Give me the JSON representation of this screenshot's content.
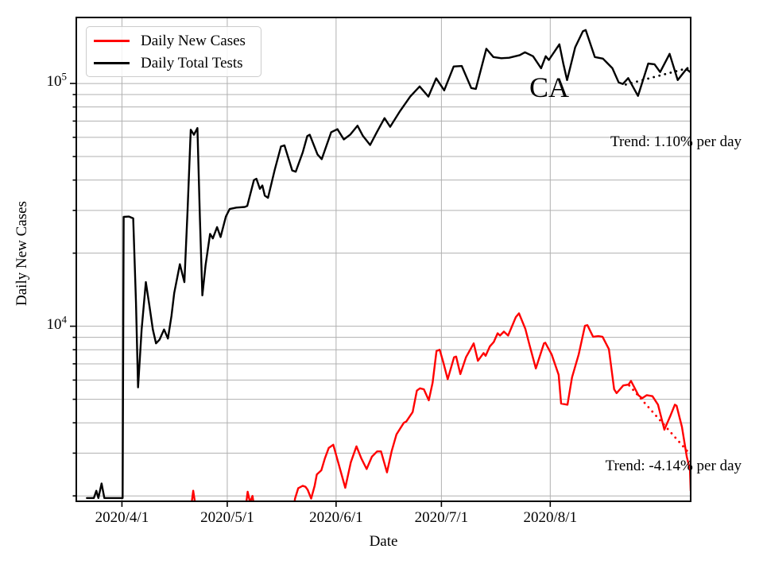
{
  "figure": {
    "ylabel": "Daily New Cases",
    "xlabel": "Date",
    "annotation": "CA",
    "trend_top": "Trend: 1.10% per day",
    "trend_bottom": "Trend: -4.14% per day"
  },
  "legend": {
    "position": "upper left",
    "items": [
      {
        "label": "Daily New Cases",
        "color": "#ff0000"
      },
      {
        "label": "Daily Total Tests",
        "color": "#000000"
      }
    ]
  },
  "chart_data": {
    "type": "line",
    "title": "",
    "xlabel": "Date",
    "ylabel": "Daily New Cases",
    "y_scale": "log",
    "ylim": [
      1900,
      187000
    ],
    "grid": true,
    "grid_color": "#b0b0b0",
    "x_unit": "days since 2020-03-19",
    "xlim_days": [
      0,
      175
    ],
    "x_ticks": [
      {
        "day": 13,
        "label": "2020/4/1"
      },
      {
        "day": 43,
        "label": "2020/5/1"
      },
      {
        "day": 74,
        "label": "2020/6/1"
      },
      {
        "day": 104,
        "label": "2020/7/1"
      },
      {
        "day": 135,
        "label": "2020/8/1"
      }
    ],
    "y_ticks": [
      {
        "value": 100000,
        "base": "10",
        "exp": "5"
      },
      {
        "value": 10000,
        "base": "10",
        "exp": "4"
      }
    ],
    "y_minor_gridlines": [
      2000,
      3000,
      4000,
      5000,
      6000,
      7000,
      8000,
      9000,
      20000,
      30000,
      40000,
      50000,
      60000,
      70000,
      80000,
      90000
    ],
    "series": [
      {
        "name": "Daily Total Tests",
        "color": "#000000",
        "points": [
          [
            3,
            1960
          ],
          [
            5,
            1960
          ],
          [
            5.7,
            2100
          ],
          [
            6.3,
            1960
          ],
          [
            7.2,
            2250
          ],
          [
            8,
            1960
          ],
          [
            13.2,
            1960
          ],
          [
            13.5,
            28200
          ],
          [
            15,
            28300
          ],
          [
            16.2,
            27800
          ],
          [
            17,
            12500
          ],
          [
            17.6,
            5600
          ],
          [
            18.6,
            9700
          ],
          [
            19.8,
            15200
          ],
          [
            20.8,
            12200
          ],
          [
            21.8,
            9700
          ],
          [
            22.7,
            8500
          ],
          [
            23.7,
            8800
          ],
          [
            25,
            9700
          ],
          [
            26.1,
            8900
          ],
          [
            27.1,
            11000
          ],
          [
            27.9,
            13700
          ],
          [
            29.5,
            18000
          ],
          [
            30.8,
            15200
          ],
          [
            31.7,
            30000
          ],
          [
            32.6,
            64500
          ],
          [
            33.5,
            61500
          ],
          [
            34.5,
            65500
          ],
          [
            35.2,
            28000
          ],
          [
            35.9,
            13400
          ],
          [
            36.8,
            17800
          ],
          [
            38.1,
            24000
          ],
          [
            38.9,
            23000
          ],
          [
            40.1,
            25600
          ],
          [
            41.1,
            23300
          ],
          [
            42.6,
            28300
          ],
          [
            43.7,
            30400
          ],
          [
            45.6,
            30800
          ],
          [
            48,
            31000
          ],
          [
            48.7,
            31300
          ],
          [
            50.6,
            40000
          ],
          [
            51.3,
            40500
          ],
          [
            52.3,
            36800
          ],
          [
            53,
            38000
          ],
          [
            53.7,
            34500
          ],
          [
            54.6,
            33800
          ],
          [
            56.5,
            44000
          ],
          [
            58.3,
            55000
          ],
          [
            59.3,
            55600
          ],
          [
            61.5,
            43800
          ],
          [
            62.5,
            43300
          ],
          [
            64.5,
            52000
          ],
          [
            65.8,
            60700
          ],
          [
            66.5,
            61500
          ],
          [
            68.7,
            51000
          ],
          [
            69.9,
            48800
          ],
          [
            72.6,
            63000
          ],
          [
            74.4,
            64800
          ],
          [
            76.2,
            58800
          ],
          [
            78,
            61500
          ],
          [
            80.1,
            67000
          ],
          [
            81.6,
            61000
          ],
          [
            83.7,
            55800
          ],
          [
            85.6,
            63000
          ],
          [
            87.8,
            72000
          ],
          [
            89.4,
            66300
          ],
          [
            92.1,
            76500
          ],
          [
            95.1,
            88300
          ],
          [
            97.8,
            97200
          ],
          [
            100.3,
            88300
          ],
          [
            102.5,
            105000
          ],
          [
            104.8,
            93700
          ],
          [
            107.5,
            117500
          ],
          [
            109.8,
            118000
          ],
          [
            112.5,
            95800
          ],
          [
            113.8,
            95000
          ],
          [
            116.8,
            139000
          ],
          [
            118.8,
            128500
          ],
          [
            121.1,
            127000
          ],
          [
            123.3,
            127600
          ],
          [
            126.3,
            130800
          ],
          [
            127.8,
            134400
          ],
          [
            130.1,
            129500
          ],
          [
            132.4,
            115500
          ],
          [
            133.7,
            129500
          ],
          [
            134.6,
            125000
          ],
          [
            137.6,
            145000
          ],
          [
            138.7,
            121000
          ],
          [
            139.8,
            103300
          ],
          [
            142.1,
            141000
          ],
          [
            144.3,
            164000
          ],
          [
            145.1,
            166000
          ],
          [
            147.7,
            128500
          ],
          [
            150,
            126600
          ],
          [
            152.7,
            115500
          ],
          [
            154.5,
            101000
          ],
          [
            155.7,
            99500
          ],
          [
            157.2,
            105200
          ],
          [
            160,
            88900
          ],
          [
            162.9,
            120800
          ],
          [
            164.7,
            120000
          ],
          [
            166.3,
            111400
          ],
          [
            169,
            132400
          ],
          [
            171.3,
            103300
          ],
          [
            173.8,
            114700
          ],
          [
            175,
            111000
          ]
        ]
      },
      {
        "name": "Daily New Cases",
        "color": "#ff0000",
        "points": [
          [
            31.9,
            1550
          ],
          [
            32.6,
            1750
          ],
          [
            33.3,
            2100
          ],
          [
            34,
            1800
          ],
          [
            34.6,
            1550
          ],
          [
            47.7,
            1550
          ],
          [
            48.8,
            2080
          ],
          [
            49.5,
            1880
          ],
          [
            50.2,
            2000
          ],
          [
            51.3,
            1550
          ],
          [
            61.3,
            1550
          ],
          [
            62.3,
            1950
          ],
          [
            63.2,
            2150
          ],
          [
            64.5,
            2200
          ],
          [
            65.3,
            2180
          ],
          [
            65.9,
            2120
          ],
          [
            66.9,
            1950
          ],
          [
            67.9,
            2200
          ],
          [
            68.5,
            2450
          ],
          [
            69.8,
            2550
          ],
          [
            70.8,
            2850
          ],
          [
            71.9,
            3150
          ],
          [
            73.2,
            3250
          ],
          [
            74.6,
            2750
          ],
          [
            76.6,
            2160
          ],
          [
            78.2,
            2750
          ],
          [
            79.8,
            3200
          ],
          [
            81.2,
            2850
          ],
          [
            82.7,
            2580
          ],
          [
            84.2,
            2900
          ],
          [
            85.7,
            3050
          ],
          [
            86.8,
            3050
          ],
          [
            88.5,
            2500
          ],
          [
            89.8,
            3050
          ],
          [
            91.2,
            3580
          ],
          [
            93.3,
            4000
          ],
          [
            94,
            4050
          ],
          [
            95.8,
            4430
          ],
          [
            97,
            5430
          ],
          [
            97.9,
            5550
          ],
          [
            99,
            5500
          ],
          [
            100.4,
            4950
          ],
          [
            101.5,
            5850
          ],
          [
            102.6,
            7900
          ],
          [
            103.5,
            8000
          ],
          [
            104.6,
            7050
          ],
          [
            105.8,
            6050
          ],
          [
            107.6,
            7450
          ],
          [
            108.2,
            7500
          ],
          [
            109.4,
            6350
          ],
          [
            111,
            7450
          ],
          [
            112.6,
            8200
          ],
          [
            113.2,
            8500
          ],
          [
            114.4,
            7200
          ],
          [
            116,
            7750
          ],
          [
            116.6,
            7550
          ],
          [
            117.8,
            8250
          ],
          [
            118.9,
            8600
          ],
          [
            120,
            9350
          ],
          [
            120.7,
            9150
          ],
          [
            121.8,
            9500
          ],
          [
            123,
            9150
          ],
          [
            125.2,
            10900
          ],
          [
            126.1,
            11300
          ],
          [
            127.9,
            9750
          ],
          [
            129.1,
            8350
          ],
          [
            130.9,
            6700
          ],
          [
            133.2,
            8500
          ],
          [
            133.6,
            8550
          ],
          [
            135.4,
            7650
          ],
          [
            137.4,
            6300
          ],
          [
            138.1,
            4800
          ],
          [
            139.9,
            4750
          ],
          [
            141.2,
            6150
          ],
          [
            143.1,
            7650
          ],
          [
            144.9,
            10050
          ],
          [
            145.6,
            10100
          ],
          [
            147.2,
            9050
          ],
          [
            148.7,
            9100
          ],
          [
            149.9,
            9050
          ],
          [
            151.7,
            8050
          ],
          [
            153.2,
            5500
          ],
          [
            153.9,
            5300
          ],
          [
            155.8,
            5700
          ],
          [
            157.3,
            5750
          ],
          [
            158,
            5950
          ],
          [
            160.1,
            5200
          ],
          [
            161.2,
            5050
          ],
          [
            162.5,
            5200
          ],
          [
            164.1,
            5150
          ],
          [
            165.7,
            4750
          ],
          [
            167.5,
            3750
          ],
          [
            169.3,
            4300
          ],
          [
            170.5,
            4750
          ],
          [
            171,
            4700
          ],
          [
            172.5,
            3850
          ],
          [
            173.9,
            2900
          ],
          [
            174.8,
            2560
          ],
          [
            175,
            2100
          ]
        ]
      }
    ],
    "trend_lines": [
      {
        "series": "Daily Total Tests",
        "color": "#000000",
        "style": "dotted",
        "rate_percent_per_day": 1.1,
        "label": "Trend: 1.10% per day",
        "points": [
          [
            156.5,
            99000
          ],
          [
            175,
            116500
          ]
        ]
      },
      {
        "series": "Daily New Cases",
        "color": "#ff0000",
        "style": "dotted",
        "rate_percent_per_day": -4.14,
        "label": "Trend: -4.14% per day",
        "points": [
          [
            157.5,
            5700
          ],
          [
            175,
            2950
          ]
        ]
      }
    ]
  }
}
